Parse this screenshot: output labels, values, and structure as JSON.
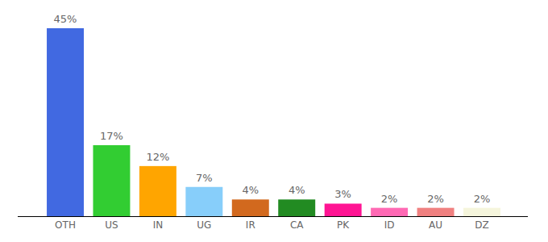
{
  "chart_data": {
    "type": "bar",
    "categories": [
      "OTH",
      "US",
      "IN",
      "UG",
      "IR",
      "CA",
      "PK",
      "ID",
      "AU",
      "DZ"
    ],
    "values": [
      45,
      17,
      12,
      7,
      4,
      4,
      3,
      2,
      2,
      2
    ],
    "value_labels": [
      "45%",
      "17%",
      "12%",
      "7%",
      "4%",
      "4%",
      "3%",
      "2%",
      "2%",
      "2%"
    ],
    "colors": [
      "#4169e1",
      "#32cd32",
      "#ffa500",
      "#87cefa",
      "#d2691e",
      "#228b22",
      "#ff1493",
      "#ff69b4",
      "#f08080",
      "#f5f5dc"
    ],
    "data_labels": true,
    "tick_labels": "x"
  }
}
